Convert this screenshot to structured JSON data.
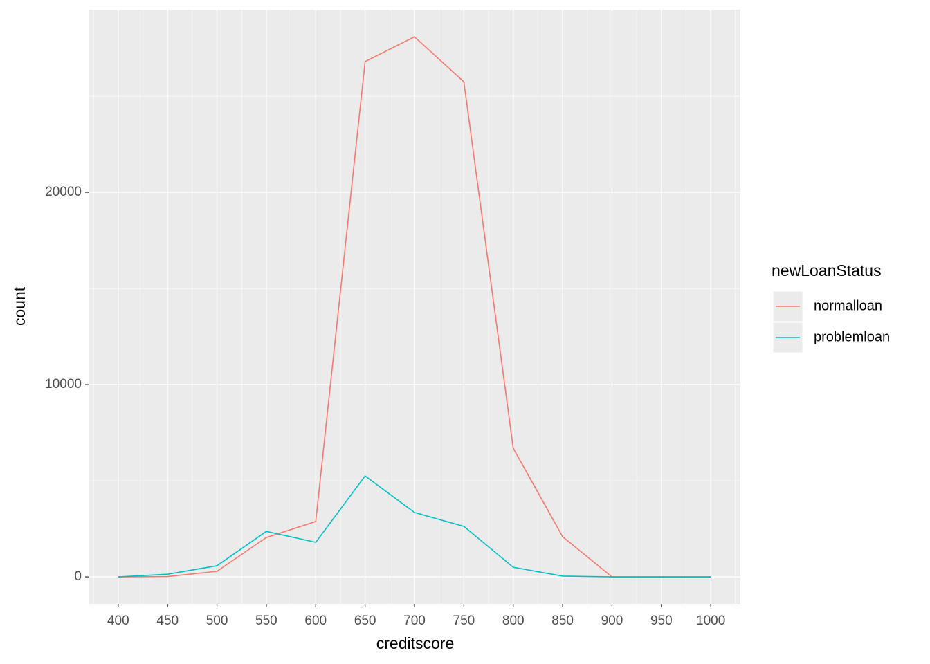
{
  "chart_data": {
    "type": "line",
    "x_label": "creditscore",
    "y_label": "count",
    "x": [
      400,
      450,
      500,
      550,
      600,
      650,
      700,
      750,
      800,
      850,
      900,
      950,
      1000
    ],
    "series": [
      {
        "name": "normalloan",
        "color": "#F8766D",
        "values": [
          0,
          20,
          290,
          2050,
          2880,
          26800,
          28090,
          25750,
          6690,
          2090,
          0,
          0,
          0
        ]
      },
      {
        "name": "problemloan",
        "color": "#00BFC4",
        "values": [
          0,
          140,
          580,
          2370,
          1800,
          5250,
          3350,
          2630,
          500,
          40,
          0,
          0,
          0
        ]
      }
    ],
    "xlim": [
      370,
      1030
    ],
    "ylim": [
      -1400,
      29500
    ],
    "xticks": [
      400,
      450,
      500,
      550,
      600,
      650,
      700,
      750,
      800,
      850,
      900,
      950,
      1000
    ],
    "yticks": [
      0,
      10000,
      20000
    ],
    "grid": true,
    "minor_grid": true,
    "legend": {
      "title": "newLoanStatus",
      "position": "right"
    }
  }
}
